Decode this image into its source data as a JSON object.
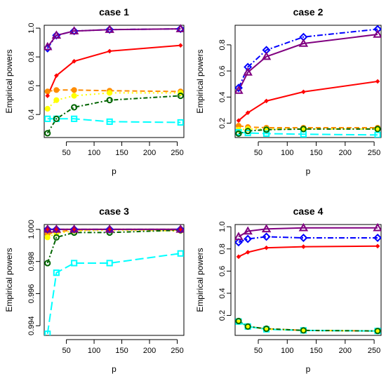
{
  "chart_data": [
    {
      "type": "line",
      "title": "case 1",
      "xlabel": "p",
      "ylabel": "Empirical powers",
      "x": [
        16,
        32,
        64,
        128,
        256
      ],
      "xlim": [
        10,
        262
      ],
      "ylim": [
        0.24,
        1.02
      ],
      "xticks": [
        "50",
        "100",
        "150",
        "200",
        "250"
      ],
      "yticks": [
        "0.4",
        "0.6",
        "0.8",
        "1.0"
      ],
      "series": [
        {
          "color": "#ff8c00",
          "dash": "7,4",
          "marker": "circle-filled",
          "values": [
            0.56,
            0.57,
            0.57,
            0.565,
            0.56
          ]
        },
        {
          "color": "#ffff00",
          "dash": "2,4",
          "marker": "circle-filled",
          "values": [
            0.44,
            0.5,
            0.53,
            0.55,
            0.55
          ]
        },
        {
          "color": "#00ffff",
          "dash": "12,5",
          "marker": "square-open",
          "values": [
            0.37,
            0.37,
            0.37,
            0.35,
            0.345
          ]
        },
        {
          "color": "#006400",
          "dash": "6,3,2,3",
          "marker": "circle-open",
          "values": [
            0.27,
            0.37,
            0.45,
            0.5,
            0.53
          ]
        },
        {
          "color": "#ff0000",
          "dash": "",
          "marker": "diamond-filled",
          "values": [
            0.53,
            0.67,
            0.77,
            0.84,
            0.88
          ]
        },
        {
          "color": "#0000ff",
          "dash": "8,3,2,3",
          "marker": "diamond-open",
          "values": [
            0.86,
            0.95,
            0.98,
            0.99,
            0.995
          ]
        },
        {
          "color": "#800080",
          "dash": "",
          "marker": "triangle-open",
          "values": [
            0.87,
            0.95,
            0.98,
            0.99,
            0.995
          ]
        }
      ]
    },
    {
      "type": "line",
      "title": "case 2",
      "xlabel": "p",
      "ylabel": "Empirical powers",
      "x": [
        16,
        32,
        64,
        128,
        256
      ],
      "xlim": [
        10,
        262
      ],
      "ylim": [
        0.09,
        0.95
      ],
      "xticks": [
        "50",
        "100",
        "150",
        "200",
        "250"
      ],
      "yticks": [
        "0.2",
        "0.4",
        "0.6",
        "0.8"
      ],
      "series": [
        {
          "color": "#ff8c00",
          "dash": "7,4",
          "marker": "circle-filled",
          "values": [
            0.18,
            0.17,
            0.165,
            0.165,
            0.165
          ]
        },
        {
          "color": "#ffff00",
          "dash": "2,4",
          "marker": "circle-filled",
          "values": [
            0.15,
            0.155,
            0.155,
            0.155,
            0.155
          ]
        },
        {
          "color": "#00ffff",
          "dash": "12,5",
          "marker": "square-open",
          "values": [
            0.13,
            0.125,
            0.12,
            0.115,
            0.11
          ]
        },
        {
          "color": "#006400",
          "dash": "6,3,2,3",
          "marker": "circle-open",
          "values": [
            0.12,
            0.14,
            0.15,
            0.155,
            0.155
          ]
        },
        {
          "color": "#ff0000",
          "dash": "",
          "marker": "diamond-filled",
          "values": [
            0.22,
            0.28,
            0.37,
            0.44,
            0.52
          ]
        },
        {
          "color": "#0000ff",
          "dash": "8,3,2,3",
          "marker": "diamond-open",
          "values": [
            0.47,
            0.63,
            0.76,
            0.86,
            0.92
          ]
        },
        {
          "color": "#800080",
          "dash": "",
          "marker": "triangle-open",
          "values": [
            0.45,
            0.59,
            0.71,
            0.81,
            0.88
          ]
        }
      ]
    },
    {
      "type": "line",
      "title": "case 3",
      "xlabel": "p",
      "ylabel": "Empirical powers",
      "x": [
        16,
        32,
        64,
        128,
        256
      ],
      "xlim": [
        10,
        262
      ],
      "ylim": [
        0.9934,
        1.0003
      ],
      "xticks": [
        "50",
        "100",
        "150",
        "200",
        "250"
      ],
      "yticks": [
        "0.994",
        "0.996",
        "0.998",
        "1.000"
      ],
      "series": [
        {
          "color": "#ff8c00",
          "dash": "7,4",
          "marker": "circle-filled",
          "values": [
            0.9997,
            0.99985,
            0.99995,
            1.0,
            0.99995
          ]
        },
        {
          "color": "#ffff00",
          "dash": "2,4",
          "marker": "circle-filled",
          "values": [
            0.9995,
            0.99975,
            0.9999,
            0.99995,
            0.9999
          ]
        },
        {
          "color": "#00ffff",
          "dash": "12,5",
          "marker": "square-open",
          "values": [
            0.9935,
            0.9973,
            0.9979,
            0.9979,
            0.9985
          ]
        },
        {
          "color": "#006400",
          "dash": "6,3,2,3",
          "marker": "circle-open",
          "values": [
            0.9979,
            0.9995,
            0.9998,
            0.9998,
            0.99995
          ]
        },
        {
          "color": "#ff0000",
          "dash": "",
          "marker": "diamond-filled",
          "values": [
            1.0,
            1.0,
            1.0,
            1.0,
            1.0
          ]
        },
        {
          "color": "#0000ff",
          "dash": "8,3,2,3",
          "marker": "diamond-open",
          "values": [
            1.0,
            1.0,
            1.0,
            1.0,
            1.0
          ]
        },
        {
          "color": "#800080",
          "dash": "",
          "marker": "triangle-open",
          "values": [
            1.0,
            1.0,
            1.0,
            1.0,
            1.0
          ]
        }
      ]
    },
    {
      "type": "line",
      "title": "case 4",
      "xlabel": "p",
      "ylabel": "Empirical powers",
      "x": [
        16,
        32,
        64,
        128,
        256
      ],
      "xlim": [
        10,
        262
      ],
      "ylim": [
        0.02,
        1.02
      ],
      "xticks": [
        "50",
        "100",
        "150",
        "200",
        "250"
      ],
      "yticks": [
        "0.2",
        "0.4",
        "0.6",
        "0.8",
        "1.0"
      ],
      "series": [
        {
          "color": "#ff8c00",
          "dash": "7,4",
          "marker": "circle-filled",
          "values": [
            0.15,
            0.1,
            0.08,
            0.065,
            0.06
          ]
        },
        {
          "color": "#ffff00",
          "dash": "2,4",
          "marker": "circle-filled",
          "values": [
            0.14,
            0.1,
            0.075,
            0.065,
            0.06
          ]
        },
        {
          "color": "#00ffff",
          "dash": "12,5",
          "marker": "square-open",
          "values": [
            0.145,
            0.1,
            0.075,
            0.065,
            0.06
          ]
        },
        {
          "color": "#006400",
          "dash": "6,3,2,3",
          "marker": "circle-open",
          "values": [
            0.15,
            0.1,
            0.08,
            0.065,
            0.06
          ]
        },
        {
          "color": "#ff0000",
          "dash": "",
          "marker": "diamond-filled",
          "values": [
            0.73,
            0.77,
            0.81,
            0.82,
            0.825
          ]
        },
        {
          "color": "#0000ff",
          "dash": "8,3,2,3",
          "marker": "diamond-open",
          "values": [
            0.86,
            0.89,
            0.91,
            0.9,
            0.9
          ]
        },
        {
          "color": "#800080",
          "dash": "",
          "marker": "triangle-open",
          "values": [
            0.91,
            0.96,
            0.98,
            0.99,
            0.99
          ]
        }
      ]
    }
  ]
}
